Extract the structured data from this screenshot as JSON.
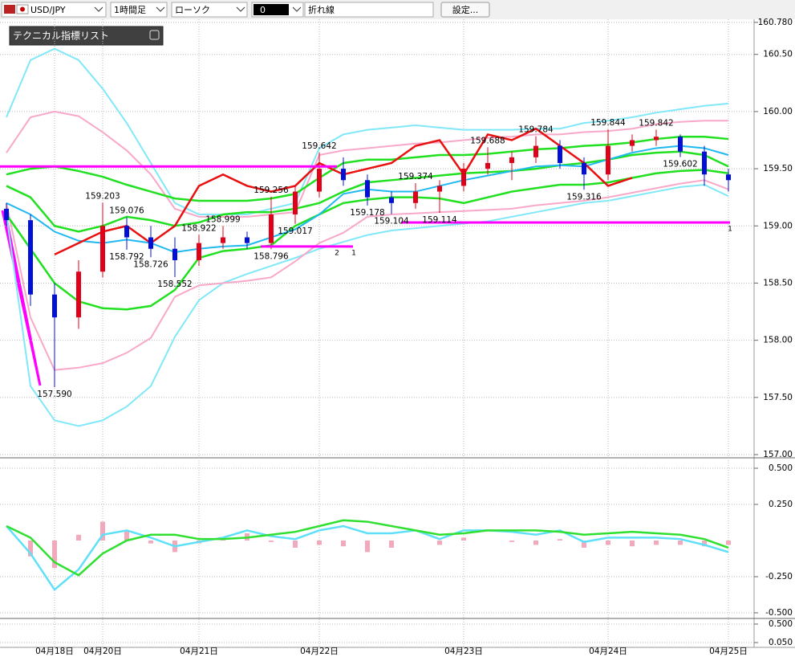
{
  "toolbar": {
    "symbol": "USD/JPY",
    "timeframe": "1時間足",
    "chart_style": "ローソク",
    "number": "0",
    "line_type": "折れ線",
    "settings": "設定..."
  },
  "panel_title": "テクニカル指標リスト",
  "chart_data": [
    {
      "type": "candlestick",
      "categories": [
        null,
        null,
        "04月18日",
        null,
        "04月20日",
        null,
        null,
        null,
        "04月21日",
        null,
        null,
        null,
        null,
        "04月22日",
        null,
        null,
        null,
        null,
        null,
        "04月23日",
        null,
        null,
        null,
        null,
        null,
        "04月24日",
        null,
        null,
        null,
        null,
        "04月25日"
      ],
      "open": [
        159.15,
        159.05,
        158.4,
        158.2,
        158.6,
        159.0,
        158.9,
        158.8,
        158.7,
        158.85,
        158.9,
        158.85,
        159.1,
        159.3,
        159.5,
        159.4,
        159.25,
        159.2,
        159.3,
        159.35,
        159.5,
        159.55,
        159.6,
        159.7,
        159.55,
        159.45,
        159.7,
        159.75,
        159.78,
        159.65,
        159.45
      ],
      "high": [
        159.2,
        159.1,
        158.5,
        158.7,
        159.203,
        159.076,
        159.0,
        158.9,
        158.922,
        158.999,
        158.95,
        159.256,
        159.35,
        159.642,
        159.6,
        159.45,
        159.3,
        159.374,
        159.4,
        159.55,
        159.688,
        159.65,
        159.784,
        159.75,
        159.6,
        159.844,
        159.8,
        159.842,
        159.8,
        159.7,
        159.5
      ],
      "low": [
        159.0,
        158.3,
        157.59,
        158.1,
        158.55,
        158.792,
        158.726,
        158.552,
        158.65,
        158.8,
        158.8,
        158.796,
        159.017,
        159.25,
        159.35,
        159.178,
        159.104,
        159.15,
        159.114,
        159.3,
        159.45,
        159.4,
        159.55,
        159.5,
        159.316,
        159.4,
        159.65,
        159.7,
        159.602,
        159.35,
        159.3
      ],
      "close": [
        159.05,
        158.4,
        158.2,
        158.6,
        159.0,
        158.9,
        158.8,
        158.7,
        158.85,
        158.9,
        158.85,
        159.1,
        159.3,
        159.5,
        159.4,
        159.25,
        159.2,
        159.3,
        159.35,
        159.5,
        159.55,
        159.6,
        159.7,
        159.55,
        159.45,
        159.7,
        159.75,
        159.78,
        159.65,
        159.45,
        159.4
      ],
      "up_color": "#e0001a",
      "down_color": "#0010d8",
      "series": [
        {
          "color": "#80e8f8",
          "values": [
            159.95,
            160.45,
            160.55,
            160.45,
            160.2,
            159.9,
            159.55,
            159.2,
            159.1,
            159.1,
            159.1,
            159.15,
            159.2,
            159.68,
            159.8,
            159.84,
            159.86,
            159.88,
            159.86,
            159.84,
            159.84,
            159.84,
            159.85,
            159.85,
            159.9,
            159.92,
            159.95,
            159.99,
            160.02,
            160.05,
            160.07
          ]
        },
        {
          "color": "#80e8f8",
          "values": [
            159.1,
            157.6,
            157.3,
            157.25,
            157.3,
            157.42,
            157.6,
            158.03,
            158.35,
            158.5,
            158.58,
            158.65,
            158.72,
            158.8,
            158.86,
            158.92,
            158.96,
            158.98,
            159.0,
            159.02,
            159.04,
            159.08,
            159.12,
            159.16,
            159.2,
            159.22,
            159.26,
            159.3,
            159.34,
            159.36,
            159.26
          ]
        },
        {
          "color": "#f8a8c8",
          "values": [
            159.64,
            159.95,
            160.0,
            159.96,
            159.82,
            159.66,
            159.45,
            159.15,
            159.08,
            159.08,
            159.08,
            159.1,
            159.12,
            159.62,
            159.66,
            159.68,
            159.7,
            159.72,
            159.73,
            159.75,
            159.77,
            159.78,
            159.8,
            159.8,
            159.82,
            159.83,
            159.85,
            159.89,
            159.91,
            159.92,
            159.92
          ]
        },
        {
          "color": "#f8a8c8",
          "values": [
            159.2,
            158.2,
            157.74,
            157.76,
            157.8,
            157.89,
            158.02,
            158.38,
            158.48,
            158.5,
            158.52,
            158.55,
            158.69,
            158.85,
            158.94,
            159.08,
            159.1,
            159.11,
            159.12,
            159.13,
            159.14,
            159.15,
            159.18,
            159.2,
            159.22,
            159.25,
            159.29,
            159.33,
            159.37,
            159.4,
            159.32
          ]
        },
        {
          "color": "#20e020",
          "values": [
            159.45,
            159.5,
            159.52,
            159.48,
            159.43,
            159.36,
            159.3,
            159.24,
            159.22,
            159.22,
            159.22,
            159.24,
            159.28,
            159.42,
            159.55,
            159.58,
            159.58,
            159.6,
            159.62,
            159.62,
            159.63,
            159.65,
            159.67,
            159.68,
            159.7,
            159.71,
            159.73,
            159.76,
            159.78,
            159.78,
            159.76
          ]
        },
        {
          "color": "#20e020",
          "values": [
            159.35,
            159.25,
            159.0,
            158.95,
            159.0,
            159.08,
            159.05,
            159.0,
            159.03,
            159.1,
            159.12,
            159.12,
            159.15,
            159.2,
            159.3,
            159.38,
            159.4,
            159.42,
            159.44,
            159.46,
            159.47,
            159.48,
            159.5,
            159.53,
            159.55,
            159.58,
            159.62,
            159.64,
            159.65,
            159.62,
            159.52
          ]
        },
        {
          "color": "#20e020",
          "values": [
            159.1,
            158.8,
            158.5,
            158.34,
            158.28,
            158.27,
            158.3,
            158.44,
            158.72,
            158.78,
            158.8,
            158.83,
            159.0,
            159.1,
            159.2,
            159.23,
            159.25,
            159.25,
            159.24,
            159.2,
            159.25,
            159.3,
            159.33,
            159.36,
            159.36,
            159.38,
            159.42,
            159.46,
            159.48,
            159.49,
            159.46
          ]
        },
        {
          "color": "#20b8f0",
          "values": [
            159.2,
            159.1,
            158.95,
            158.87,
            158.85,
            158.88,
            158.85,
            158.77,
            158.8,
            158.82,
            158.83,
            158.9,
            158.97,
            159.1,
            159.28,
            159.32,
            159.3,
            159.3,
            159.35,
            159.4,
            159.44,
            159.48,
            159.52,
            159.53,
            159.52,
            159.58,
            159.64,
            159.68,
            159.7,
            159.68,
            159.62
          ]
        },
        {
          "color": "#e81010",
          "values": [
            null,
            null,
            158.75,
            158.85,
            158.95,
            159.0,
            158.85,
            159.0,
            159.35,
            159.45,
            159.35,
            159.3,
            159.35,
            159.55,
            159.45,
            159.5,
            159.55,
            159.7,
            159.75,
            159.45,
            159.8,
            159.75,
            159.85,
            159.7,
            159.55,
            159.35,
            159.42,
            null,
            null,
            null,
            null
          ]
        }
      ],
      "annotations": [
        {
          "value": 157.59,
          "label": "157.590"
        },
        {
          "value": 159.203,
          "label": "159.203"
        },
        {
          "value": 159.076,
          "label": "159.076"
        },
        {
          "value": 158.792,
          "label": "158.792"
        },
        {
          "value": 158.726,
          "label": "158.726"
        },
        {
          "value": 158.552,
          "label": "158.552"
        },
        {
          "value": 158.922,
          "label": "158.922"
        },
        {
          "value": 158.999,
          "label": "158.999"
        },
        {
          "value": 158.796,
          "label": "158.796"
        },
        {
          "value": 159.256,
          "label": "159.256"
        },
        {
          "value": 159.017,
          "label": "159.017"
        },
        {
          "value": 159.642,
          "label": "159.642"
        },
        {
          "value": 159.178,
          "label": "159.178"
        },
        {
          "value": 159.104,
          "label": "159.104"
        },
        {
          "value": 159.374,
          "label": "159.374"
        },
        {
          "value": 159.114,
          "label": "159.114"
        },
        {
          "value": 159.688,
          "label": "159.688"
        },
        {
          "value": 159.784,
          "label": "159.784"
        },
        {
          "value": 159.844,
          "label": "159.844"
        },
        {
          "value": 159.316,
          "label": "159.316"
        },
        {
          "value": 159.842,
          "label": "159.842"
        },
        {
          "value": 159.602,
          "label": "159.602"
        }
      ],
      "levels": [
        159.52,
        159.03,
        158.82
      ],
      "level_color": "#ff00ff",
      "level_tags": [
        "2",
        "1",
        "1"
      ],
      "ylim": [
        156.986,
        160.807
      ],
      "yticks": [
        {
          "value": 160.78,
          "label": "160.780"
        },
        {
          "value": 160.5,
          "label": "160.50"
        },
        {
          "value": 160,
          "label": "160.00"
        },
        {
          "value": 159.5,
          "label": "159.50"
        },
        {
          "value": 159,
          "label": "159.00"
        },
        {
          "value": 158.5,
          "label": "158.50"
        },
        {
          "value": 158,
          "label": "158.00"
        },
        {
          "value": 157.5,
          "label": "157.50"
        },
        {
          "value": 157,
          "label": "157.00"
        }
      ],
      "grid": true
    },
    {
      "type": "line",
      "series": [
        {
          "color": "#60e0f8",
          "values": [
            0.1,
            -0.09,
            -0.34,
            -0.2,
            0.04,
            0.07,
            0.02,
            -0.04,
            -0.01,
            0.02,
            0.07,
            0.03,
            0.01,
            0.07,
            0.1,
            0.05,
            0.05,
            0.07,
            0.01,
            0.07,
            0.07,
            0.06,
            0.04,
            0.07,
            -0.01,
            0.02,
            0.02,
            0.02,
            0.01,
            -0.03,
            -0.08
          ]
        },
        {
          "color": "#30e030",
          "values": [
            0.1,
            0.02,
            -0.15,
            -0.24,
            -0.09,
            0.0,
            0.04,
            0.04,
            0.01,
            0.01,
            0.02,
            0.04,
            0.06,
            0.1,
            0.14,
            0.13,
            0.1,
            0.07,
            0.04,
            0.05,
            0.07,
            0.07,
            0.07,
            0.06,
            0.04,
            0.05,
            0.06,
            0.05,
            0.04,
            0.01,
            -0.05
          ]
        }
      ],
      "histogram": {
        "color": "#f4a8bc",
        "values": [
          0,
          -0.11,
          -0.19,
          0.04,
          0.13,
          0.07,
          -0.02,
          -0.08,
          -0.02,
          0.01,
          0.05,
          -0.01,
          -0.05,
          -0.03,
          -0.04,
          -0.08,
          -0.05,
          0,
          -0.03,
          0.02,
          0,
          -0.01,
          -0.03,
          0.01,
          -0.05,
          -0.03,
          -0.04,
          -0.03,
          -0.03,
          -0.04,
          -0.03
        ]
      },
      "ylim": [
        -0.539,
        0.561
      ],
      "yticks": [
        {
          "value": 0.5,
          "label": "0.500"
        },
        {
          "value": 0.25,
          "label": "0.250"
        },
        {
          "value": -0.25,
          "label": "-0.250"
        },
        {
          "value": -0.5,
          "label": "-0.500"
        }
      ],
      "grid": true
    },
    {
      "type": "line",
      "ylim": [
        -0.067,
        0.637
      ],
      "yticks": [
        {
          "value": 0.5,
          "label": "0.500"
        },
        {
          "value": 0.05,
          "label": "0.050"
        }
      ],
      "grid": true
    }
  ]
}
